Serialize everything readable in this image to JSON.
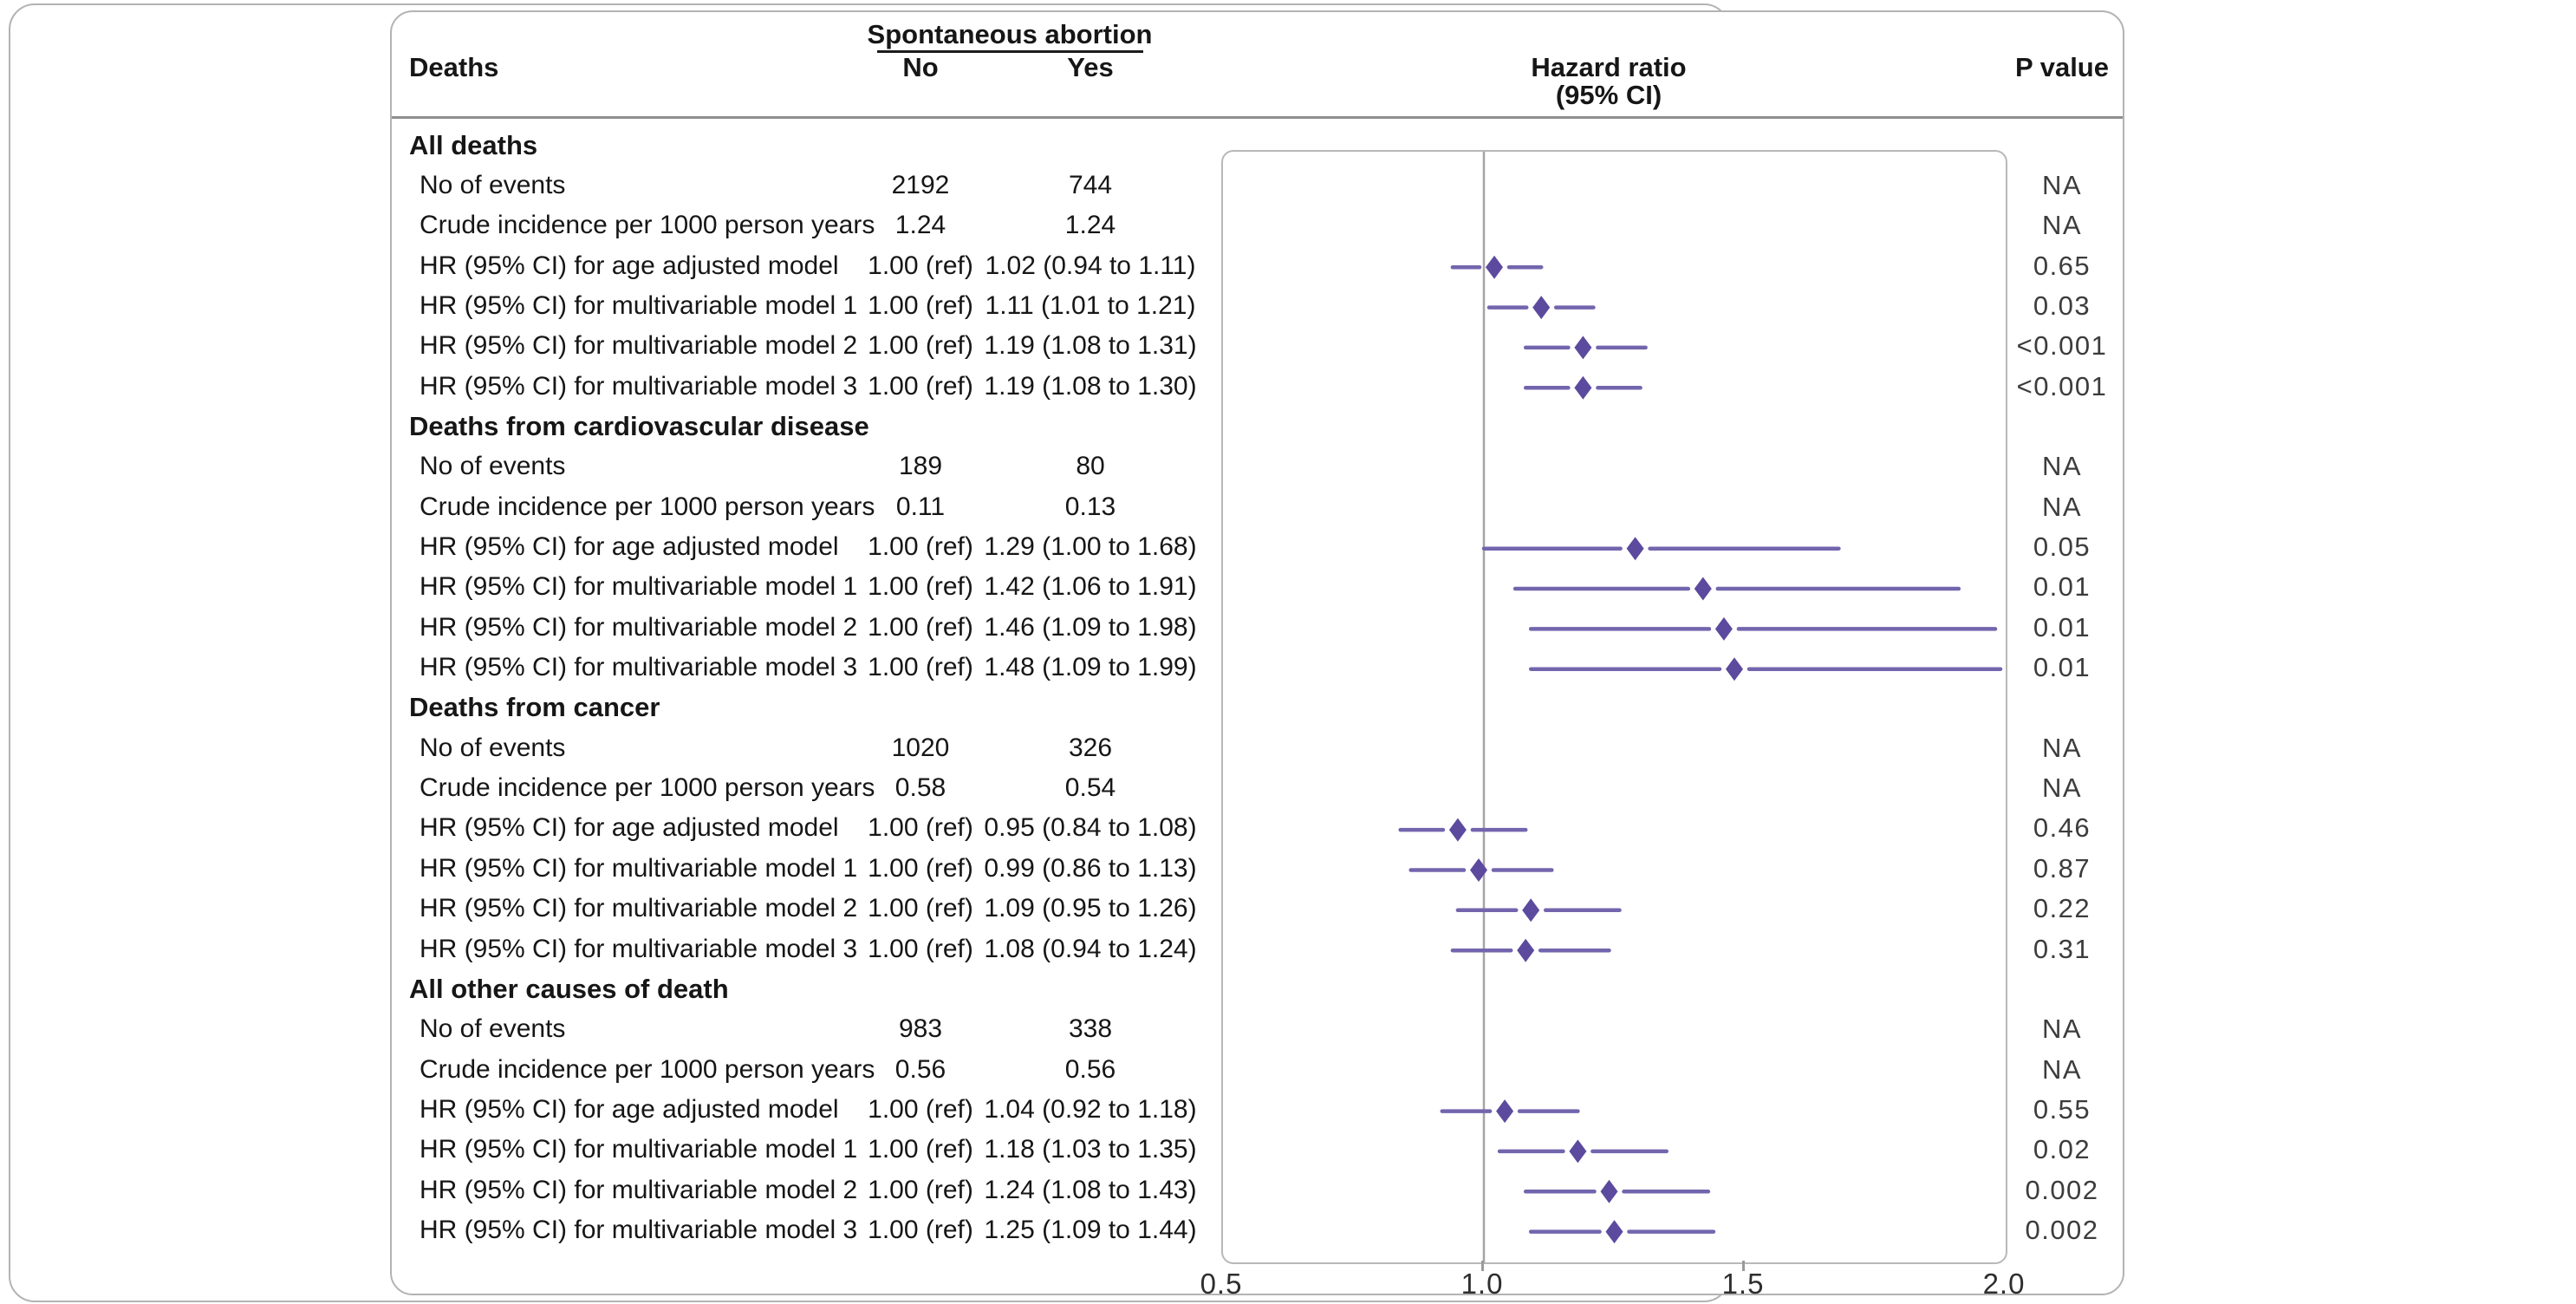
{
  "header": {
    "deaths": "Deaths",
    "group": "Spontaneous abortion",
    "no": "No",
    "yes": "Yes",
    "hr1": "Hazard ratio",
    "hr2": "(95% CI)",
    "pvalue": "P value"
  },
  "sections": [
    {
      "title": "All deaths",
      "rows": [
        {
          "label": "No of events",
          "no": "2192",
          "yes": "744",
          "p": "NA"
        },
        {
          "label": "Crude incidence per 1000 person years",
          "no": "1.24",
          "yes": "1.24",
          "p": "NA"
        },
        {
          "label": "HR (95% CI) for age adjusted model",
          "no": "1.00 (ref)",
          "yes": "1.02 (0.94 to 1.11)",
          "p": "0.65",
          "hr": 1.02,
          "lo": 0.94,
          "hi": 1.11
        },
        {
          "label": "HR (95% CI) for multivariable model 1",
          "no": "1.00 (ref)",
          "yes": "1.11 (1.01 to 1.21)",
          "p": "0.03",
          "hr": 1.11,
          "lo": 1.01,
          "hi": 1.21
        },
        {
          "label": "HR (95% CI) for multivariable model 2",
          "no": "1.00 (ref)",
          "yes": "1.19 (1.08 to 1.31)",
          "p": "<0.001",
          "hr": 1.19,
          "lo": 1.08,
          "hi": 1.31
        },
        {
          "label": "HR (95% CI) for multivariable model 3",
          "no": "1.00 (ref)",
          "yes": "1.19 (1.08 to 1.30)",
          "p": "<0.001",
          "hr": 1.19,
          "lo": 1.08,
          "hi": 1.3
        }
      ]
    },
    {
      "title": "Deaths from cardiovascular disease",
      "rows": [
        {
          "label": "No of events",
          "no": "189",
          "yes": "80",
          "p": "NA"
        },
        {
          "label": "Crude incidence per 1000 person years",
          "no": "0.11",
          "yes": "0.13",
          "p": "NA"
        },
        {
          "label": "HR (95% CI) for age adjusted model",
          "no": "1.00 (ref)",
          "yes": "1.29 (1.00 to 1.68)",
          "p": "0.05",
          "hr": 1.29,
          "lo": 1.0,
          "hi": 1.68
        },
        {
          "label": "HR (95% CI) for multivariable model 1",
          "no": "1.00 (ref)",
          "yes": "1.42 (1.06 to 1.91)",
          "p": "0.01",
          "hr": 1.42,
          "lo": 1.06,
          "hi": 1.91
        },
        {
          "label": "HR (95% CI) for multivariable model 2",
          "no": "1.00 (ref)",
          "yes": "1.46 (1.09 to 1.98)",
          "p": "0.01",
          "hr": 1.46,
          "lo": 1.09,
          "hi": 1.98
        },
        {
          "label": "HR (95% CI) for multivariable model 3",
          "no": "1.00 (ref)",
          "yes": "1.48 (1.09 to 1.99)",
          "p": "0.01",
          "hr": 1.48,
          "lo": 1.09,
          "hi": 1.99
        }
      ]
    },
    {
      "title": "Deaths from cancer",
      "rows": [
        {
          "label": "No of events",
          "no": "1020",
          "yes": "326",
          "p": "NA"
        },
        {
          "label": "Crude incidence per 1000 person years",
          "no": "0.58",
          "yes": "0.54",
          "p": "NA"
        },
        {
          "label": "HR (95% CI) for age adjusted model",
          "no": "1.00 (ref)",
          "yes": "0.95 (0.84 to 1.08)",
          "p": "0.46",
          "hr": 0.95,
          "lo": 0.84,
          "hi": 1.08
        },
        {
          "label": "HR (95% CI) for multivariable model 1",
          "no": "1.00 (ref)",
          "yes": "0.99 (0.86 to 1.13)",
          "p": "0.87",
          "hr": 0.99,
          "lo": 0.86,
          "hi": 1.13
        },
        {
          "label": "HR (95% CI) for multivariable model 2",
          "no": "1.00 (ref)",
          "yes": "1.09 (0.95 to 1.26)",
          "p": "0.22",
          "hr": 1.09,
          "lo": 0.95,
          "hi": 1.26
        },
        {
          "label": "HR (95% CI) for multivariable model 3",
          "no": "1.00 (ref)",
          "yes": "1.08 (0.94 to 1.24)",
          "p": "0.31",
          "hr": 1.08,
          "lo": 0.94,
          "hi": 1.24
        }
      ]
    },
    {
      "title": "All other causes of death",
      "rows": [
        {
          "label": "No of events",
          "no": "983",
          "yes": "338",
          "p": "NA"
        },
        {
          "label": "Crude incidence per 1000 person years",
          "no": "0.56",
          "yes": "0.56",
          "p": "NA"
        },
        {
          "label": "HR (95% CI) for age adjusted model",
          "no": "1.00 (ref)",
          "yes": "1.04 (0.92 to 1.18)",
          "p": "0.55",
          "hr": 1.04,
          "lo": 0.92,
          "hi": 1.18
        },
        {
          "label": "HR (95% CI) for multivariable model 1",
          "no": "1.00 (ref)",
          "yes": "1.18 (1.03 to 1.35)",
          "p": "0.02",
          "hr": 1.18,
          "lo": 1.03,
          "hi": 1.35
        },
        {
          "label": "HR (95% CI) for multivariable model 2",
          "no": "1.00 (ref)",
          "yes": "1.24 (1.08 to 1.43)",
          "p": "0.002",
          "hr": 1.24,
          "lo": 1.08,
          "hi": 1.43
        },
        {
          "label": "HR (95% CI) for multivariable model 3",
          "no": "1.00 (ref)",
          "yes": "1.25 (1.09 to 1.44)",
          "p": "0.002",
          "hr": 1.25,
          "lo": 1.09,
          "hi": 1.44
        }
      ]
    }
  ],
  "chart_data": {
    "type": "forest",
    "title": "Hazard ratio (95% CI)",
    "xlim": [
      0.5,
      2.0
    ],
    "xticks": [
      0.5,
      1.0,
      1.5,
      2.0
    ],
    "inner_ticks": [
      1.0,
      1.5
    ],
    "reference_line": 1.0,
    "marker": "diamond",
    "colors": {
      "ci_line": "#7365ad",
      "diamond": "#5c4a9e",
      "reference_line": "#a5a5a5",
      "plot_border": "#b8b8b8",
      "text": "#161616"
    },
    "groups": [
      {
        "name": "All deaths",
        "points": [
          {
            "model": "age adjusted",
            "hr": 1.02,
            "lo": 0.94,
            "hi": 1.11,
            "p": "0.65"
          },
          {
            "model": "multivariable model 1",
            "hr": 1.11,
            "lo": 1.01,
            "hi": 1.21,
            "p": "0.03"
          },
          {
            "model": "multivariable model 2",
            "hr": 1.19,
            "lo": 1.08,
            "hi": 1.31,
            "p": "<0.001"
          },
          {
            "model": "multivariable model 3",
            "hr": 1.19,
            "lo": 1.08,
            "hi": 1.3,
            "p": "<0.001"
          }
        ]
      },
      {
        "name": "Deaths from cardiovascular disease",
        "points": [
          {
            "model": "age adjusted",
            "hr": 1.29,
            "lo": 1.0,
            "hi": 1.68,
            "p": "0.05"
          },
          {
            "model": "multivariable model 1",
            "hr": 1.42,
            "lo": 1.06,
            "hi": 1.91,
            "p": "0.01"
          },
          {
            "model": "multivariable model 2",
            "hr": 1.46,
            "lo": 1.09,
            "hi": 1.98,
            "p": "0.01"
          },
          {
            "model": "multivariable model 3",
            "hr": 1.48,
            "lo": 1.09,
            "hi": 1.99,
            "p": "0.01"
          }
        ]
      },
      {
        "name": "Deaths from cancer",
        "points": [
          {
            "model": "age adjusted",
            "hr": 0.95,
            "lo": 0.84,
            "hi": 1.08,
            "p": "0.46"
          },
          {
            "model": "multivariable model 1",
            "hr": 0.99,
            "lo": 0.86,
            "hi": 1.13,
            "p": "0.87"
          },
          {
            "model": "multivariable model 2",
            "hr": 1.09,
            "lo": 0.95,
            "hi": 1.26,
            "p": "0.22"
          },
          {
            "model": "multivariable model 3",
            "hr": 1.08,
            "lo": 0.94,
            "hi": 1.24,
            "p": "0.31"
          }
        ]
      },
      {
        "name": "All other causes of death",
        "points": [
          {
            "model": "age adjusted",
            "hr": 1.04,
            "lo": 0.92,
            "hi": 1.18,
            "p": "0.55"
          },
          {
            "model": "multivariable model 1",
            "hr": 1.18,
            "lo": 1.03,
            "hi": 1.35,
            "p": "0.02"
          },
          {
            "model": "multivariable model 2",
            "hr": 1.24,
            "lo": 1.08,
            "hi": 1.43,
            "p": "0.002"
          },
          {
            "model": "multivariable model 3",
            "hr": 1.25,
            "lo": 1.09,
            "hi": 1.44,
            "p": "0.002"
          }
        ]
      }
    ]
  }
}
